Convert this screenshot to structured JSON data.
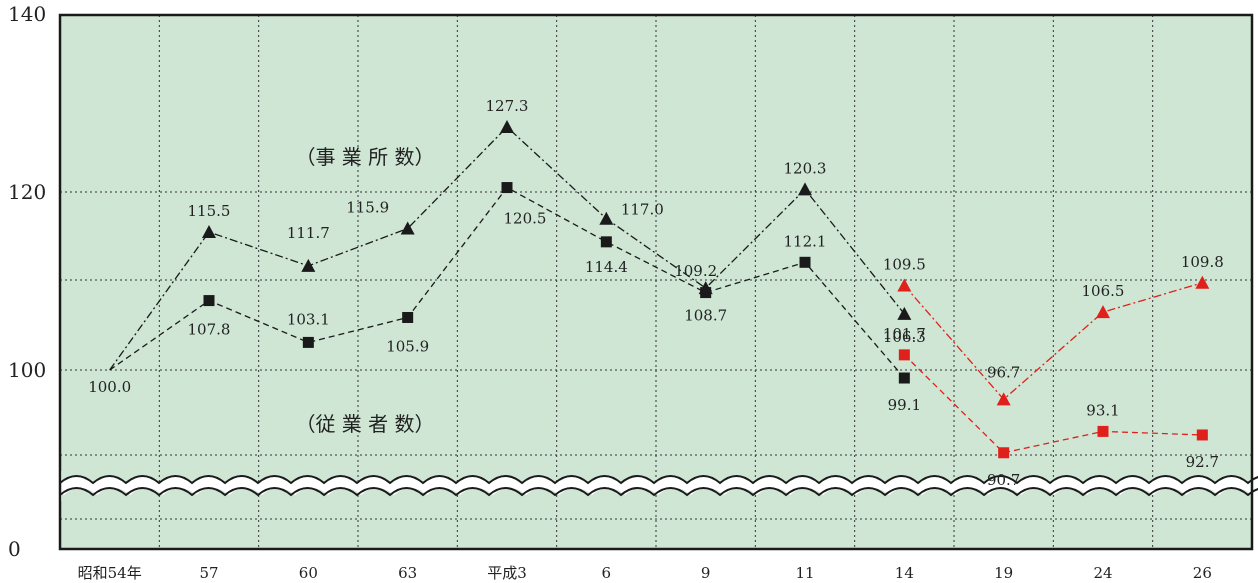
{
  "chart_data": {
    "type": "line",
    "categories": [
      "昭和54年",
      "57",
      "60",
      "63",
      "平成3",
      "6",
      "9",
      "11",
      "14",
      "19",
      "24",
      "26"
    ],
    "yticks": [
      "0",
      "100",
      "120",
      "140"
    ],
    "broken_axis": true,
    "grid": true,
    "background_color": "#cfe6d4",
    "annotations": {
      "establishments": "（事 業 所 数）",
      "employees": "（従 業 者 数）"
    },
    "series": [
      {
        "key": "est_old",
        "group": "establishments",
        "marker": "triangle",
        "color": "#1a1a1a",
        "dash": "dashdot",
        "points": [
          {
            "i": 0,
            "v": 100.0,
            "label": "100.0"
          },
          {
            "i": 1,
            "v": 115.5,
            "label": "115.5"
          },
          {
            "i": 2,
            "v": 111.7,
            "label": "111.7"
          },
          {
            "i": 3,
            "v": 115.9,
            "label": "115.9"
          },
          {
            "i": 4,
            "v": 127.3,
            "label": "127.3"
          },
          {
            "i": 5,
            "v": 117.0,
            "label": "117.0"
          },
          {
            "i": 6,
            "v": 109.2,
            "label": "109.2"
          },
          {
            "i": 7,
            "v": 120.3,
            "label": "120.3"
          },
          {
            "i": 8,
            "v": 106.3,
            "label": "106.3"
          }
        ]
      },
      {
        "key": "emp_old",
        "group": "employees",
        "marker": "square",
        "color": "#1a1a1a",
        "dash": "dashed",
        "points": [
          {
            "i": 0,
            "v": 100.0,
            "label": ""
          },
          {
            "i": 1,
            "v": 107.8,
            "label": "107.8"
          },
          {
            "i": 2,
            "v": 103.1,
            "label": "103.1"
          },
          {
            "i": 3,
            "v": 105.9,
            "label": "105.9"
          },
          {
            "i": 4,
            "v": 120.5,
            "label": "120.5"
          },
          {
            "i": 5,
            "v": 114.4,
            "label": "114.4"
          },
          {
            "i": 6,
            "v": 108.7,
            "label": "108.7"
          },
          {
            "i": 7,
            "v": 112.1,
            "label": "112.1"
          },
          {
            "i": 8,
            "v": 99.1,
            "label": "99.1"
          }
        ]
      },
      {
        "key": "est_new",
        "group": "establishments",
        "marker": "triangle",
        "color": "#e0201a",
        "dash": "dashdot",
        "points": [
          {
            "i": 8,
            "v": 109.5,
            "label": "109.5"
          },
          {
            "i": 9,
            "v": 96.7,
            "label": "96.7"
          },
          {
            "i": 10,
            "v": 106.5,
            "label": "106.5"
          },
          {
            "i": 11,
            "v": 109.8,
            "label": "109.8"
          }
        ]
      },
      {
        "key": "emp_new",
        "group": "employees",
        "marker": "square",
        "color": "#e0201a",
        "dash": "dashed",
        "points": [
          {
            "i": 8,
            "v": 101.7,
            "label": "101.7"
          },
          {
            "i": 9,
            "v": 90.7,
            "label": "90.7"
          },
          {
            "i": 10,
            "v": 93.1,
            "label": "93.1"
          },
          {
            "i": 11,
            "v": 92.7,
            "label": "92.7"
          }
        ]
      }
    ]
  }
}
